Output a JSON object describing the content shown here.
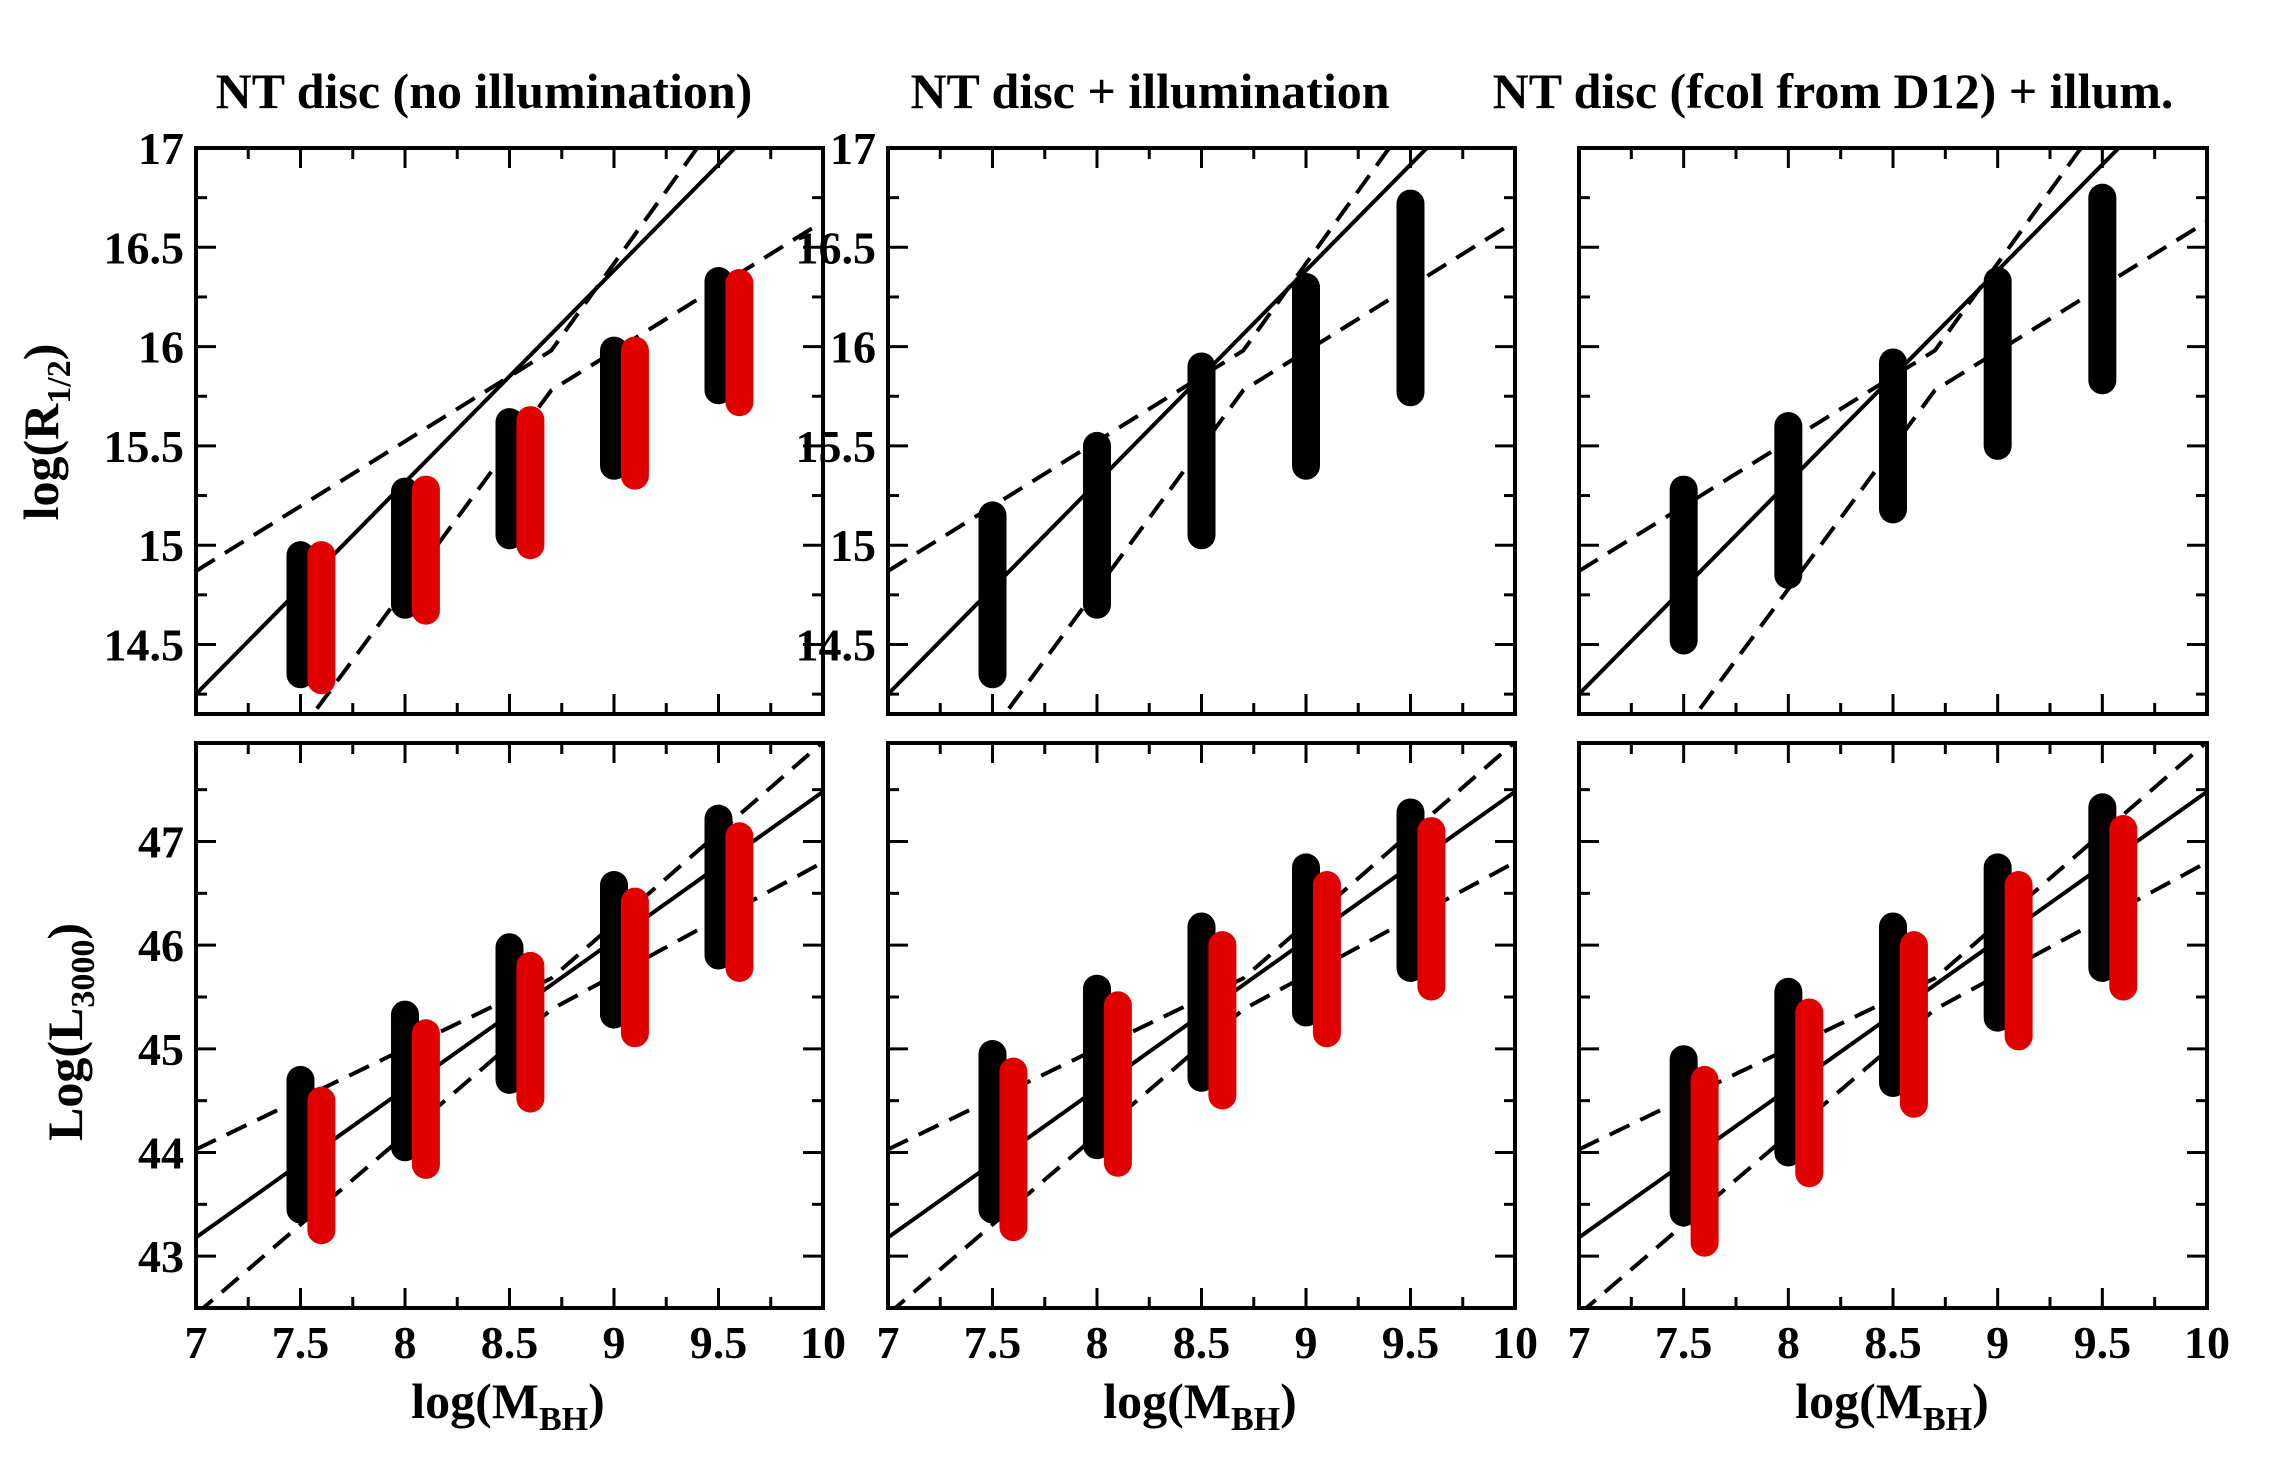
{
  "figure": {
    "ylabel_top": "log(R",
    "ylabel_top_sub": "1/2",
    "ylabel_top_close": ")",
    "ylabel_bottom": "Log(L",
    "ylabel_bottom_sub": "3000",
    "ylabel_bottom_close": ")",
    "xlabel": "log(M",
    "xlabel_sub": "BH",
    "xlabel_close": ")"
  },
  "columns": [
    {
      "title": "NT disc (no illumination)"
    },
    {
      "title": "NT disc + illumination"
    },
    {
      "title": "NT disc (fcol from D12) + illum."
    }
  ],
  "chart_data": [
    {
      "type": "scatter",
      "panel": "top-left",
      "xlim": [
        7,
        10
      ],
      "ylim": [
        14.15,
        17.0
      ],
      "x_ticks": [
        "7",
        "7.5",
        "8",
        "8.5",
        "9",
        "9.5",
        "10"
      ],
      "y_ticks": [
        "14.5",
        "15",
        "15.5",
        "16",
        "16.5",
        "17"
      ],
      "series": [
        {
          "color": "#000000",
          "x": [
            7.5,
            8.0,
            8.5,
            9.0,
            9.5
          ],
          "ymin": [
            14.35,
            14.7,
            15.05,
            15.4,
            15.78
          ],
          "ymax": [
            14.95,
            15.27,
            15.62,
            15.98,
            16.33
          ]
        },
        {
          "color": "#e00000",
          "x": [
            7.6,
            8.1,
            8.6,
            9.1,
            9.6
          ],
          "ymin": [
            14.32,
            14.67,
            15.0,
            15.35,
            15.72
          ],
          "ymax": [
            14.95,
            15.28,
            15.63,
            15.98,
            16.32
          ]
        }
      ],
      "fit": [
        [
          7.0,
          14.25
        ],
        [
          10.0,
          17.45
        ]
      ],
      "band_upper": [
        [
          7.0,
          14.87
        ],
        [
          8.7,
          15.98
        ],
        [
          10.0,
          17.88
        ]
      ],
      "band_lower": [
        [
          7.0,
          13.35
        ],
        [
          8.7,
          15.78
        ],
        [
          10.0,
          16.63
        ]
      ]
    },
    {
      "type": "scatter",
      "panel": "top-middle",
      "xlim": [
        7,
        10
      ],
      "ylim": [
        14.15,
        17.0
      ],
      "x_ticks": [
        "7",
        "7.5",
        "8",
        "8.5",
        "9",
        "9.5",
        "10"
      ],
      "y_ticks": [
        "14.5",
        "15",
        "15.5",
        "16",
        "16.5",
        "17"
      ],
      "series": [
        {
          "color": "#000000",
          "x": [
            7.5,
            8.0,
            8.5,
            9.0,
            9.5
          ],
          "ymin": [
            14.35,
            14.7,
            15.05,
            15.4,
            15.77
          ],
          "ymax": [
            15.15,
            15.5,
            15.9,
            16.3,
            16.72
          ]
        }
      ],
      "fit": [
        [
          7.0,
          14.25
        ],
        [
          10.0,
          17.45
        ]
      ],
      "band_upper": [
        [
          7.0,
          14.87
        ],
        [
          8.7,
          15.98
        ],
        [
          10.0,
          17.88
        ]
      ],
      "band_lower": [
        [
          7.0,
          13.35
        ],
        [
          8.7,
          15.78
        ],
        [
          10.0,
          16.63
        ]
      ]
    },
    {
      "type": "scatter",
      "panel": "top-right",
      "xlim": [
        7,
        10
      ],
      "ylim": [
        14.15,
        17.0
      ],
      "x_ticks": [
        "7",
        "7.5",
        "8",
        "8.5",
        "9",
        "9.5",
        "10"
      ],
      "y_ticks": [],
      "series": [
        {
          "color": "#000000",
          "x": [
            7.5,
            8.0,
            8.5,
            9.0,
            9.5
          ],
          "ymin": [
            14.52,
            14.85,
            15.18,
            15.5,
            15.83
          ],
          "ymax": [
            15.28,
            15.6,
            15.92,
            16.33,
            16.75
          ]
        }
      ],
      "fit": [
        [
          7.0,
          14.25
        ],
        [
          10.0,
          17.45
        ]
      ],
      "band_upper": [
        [
          7.0,
          14.87
        ],
        [
          8.7,
          15.98
        ],
        [
          10.0,
          17.88
        ]
      ],
      "band_lower": [
        [
          7.0,
          13.35
        ],
        [
          8.7,
          15.78
        ],
        [
          10.0,
          16.63
        ]
      ]
    },
    {
      "type": "scatter",
      "panel": "bottom-left",
      "xlim": [
        7,
        10
      ],
      "ylim": [
        42.5,
        47.95
      ],
      "x_ticks": [
        "7",
        "7.5",
        "8",
        "8.5",
        "9",
        "9.5",
        "10"
      ],
      "y_ticks": [
        "43",
        "44",
        "45",
        "46",
        "47"
      ],
      "xlabel": "log(M_BH)",
      "series": [
        {
          "color": "#000000",
          "x": [
            7.5,
            8.0,
            8.5,
            9.0,
            9.5
          ],
          "ymin": [
            43.45,
            44.05,
            44.7,
            45.33,
            45.9
          ],
          "ymax": [
            44.7,
            45.33,
            45.98,
            46.58,
            47.22
          ]
        },
        {
          "color": "#e00000",
          "x": [
            7.6,
            8.1,
            8.6,
            9.1,
            9.6
          ],
          "ymin": [
            43.25,
            43.88,
            44.52,
            45.15,
            45.78
          ],
          "ymax": [
            44.5,
            45.15,
            45.8,
            46.42,
            47.05
          ]
        }
      ],
      "fit": [
        [
          7.0,
          43.18
        ],
        [
          10.0,
          47.48
        ]
      ],
      "band_upper": [
        [
          7.0,
          44.03
        ],
        [
          8.7,
          45.68
        ],
        [
          10.0,
          47.96
        ]
      ],
      "band_lower": [
        [
          7.0,
          42.44
        ],
        [
          8.7,
          45.38
        ],
        [
          10.0,
          46.8
        ]
      ]
    },
    {
      "type": "scatter",
      "panel": "bottom-middle",
      "xlim": [
        7,
        10
      ],
      "ylim": [
        42.5,
        47.95
      ],
      "x_ticks": [
        "7",
        "7.5",
        "8",
        "8.5",
        "9",
        "9.5",
        "10"
      ],
      "y_ticks": [],
      "xlabel": "log(M_BH)",
      "series": [
        {
          "color": "#000000",
          "x": [
            7.5,
            8.0,
            8.5,
            9.0,
            9.5
          ],
          "ymin": [
            43.45,
            44.07,
            44.72,
            45.35,
            45.78
          ],
          "ymax": [
            44.95,
            45.58,
            46.18,
            46.75,
            47.28
          ]
        },
        {
          "color": "#e00000",
          "x": [
            7.6,
            8.1,
            8.6,
            9.1,
            9.6
          ],
          "ymin": [
            43.28,
            43.9,
            44.55,
            45.15,
            45.6
          ],
          "ymax": [
            44.78,
            45.42,
            46.0,
            46.58,
            47.1
          ]
        }
      ],
      "fit": [
        [
          7.0,
          43.18
        ],
        [
          10.0,
          47.48
        ]
      ],
      "band_upper": [
        [
          7.0,
          44.03
        ],
        [
          8.7,
          45.68
        ],
        [
          10.0,
          47.96
        ]
      ],
      "band_lower": [
        [
          7.0,
          42.44
        ],
        [
          8.7,
          45.38
        ],
        [
          10.0,
          46.8
        ]
      ]
    },
    {
      "type": "scatter",
      "panel": "bottom-right",
      "xlim": [
        7,
        10
      ],
      "ylim": [
        42.5,
        47.95
      ],
      "x_ticks": [
        "7",
        "7.5",
        "8",
        "8.5",
        "9",
        "9.5",
        "10"
      ],
      "y_ticks": [],
      "xlabel": "log(M_BH)",
      "series": [
        {
          "color": "#000000",
          "x": [
            7.5,
            8.0,
            8.5,
            9.0,
            9.5
          ],
          "ymin": [
            43.42,
            44.0,
            44.67,
            45.3,
            45.78
          ],
          "ymax": [
            44.9,
            45.55,
            46.18,
            46.75,
            47.33
          ]
        },
        {
          "color": "#e00000",
          "x": [
            7.6,
            8.1,
            8.6,
            9.1,
            9.6
          ],
          "ymin": [
            43.13,
            43.8,
            44.47,
            45.12,
            45.6
          ],
          "ymax": [
            44.7,
            45.35,
            46.0,
            46.58,
            47.12
          ]
        }
      ],
      "fit": [
        [
          7.0,
          43.18
        ],
        [
          10.0,
          47.48
        ]
      ],
      "band_upper": [
        [
          7.0,
          44.03
        ],
        [
          8.7,
          45.68
        ],
        [
          10.0,
          47.96
        ]
      ],
      "band_lower": [
        [
          7.0,
          42.44
        ],
        [
          8.7,
          45.38
        ],
        [
          10.0,
          46.8
        ]
      ]
    }
  ]
}
